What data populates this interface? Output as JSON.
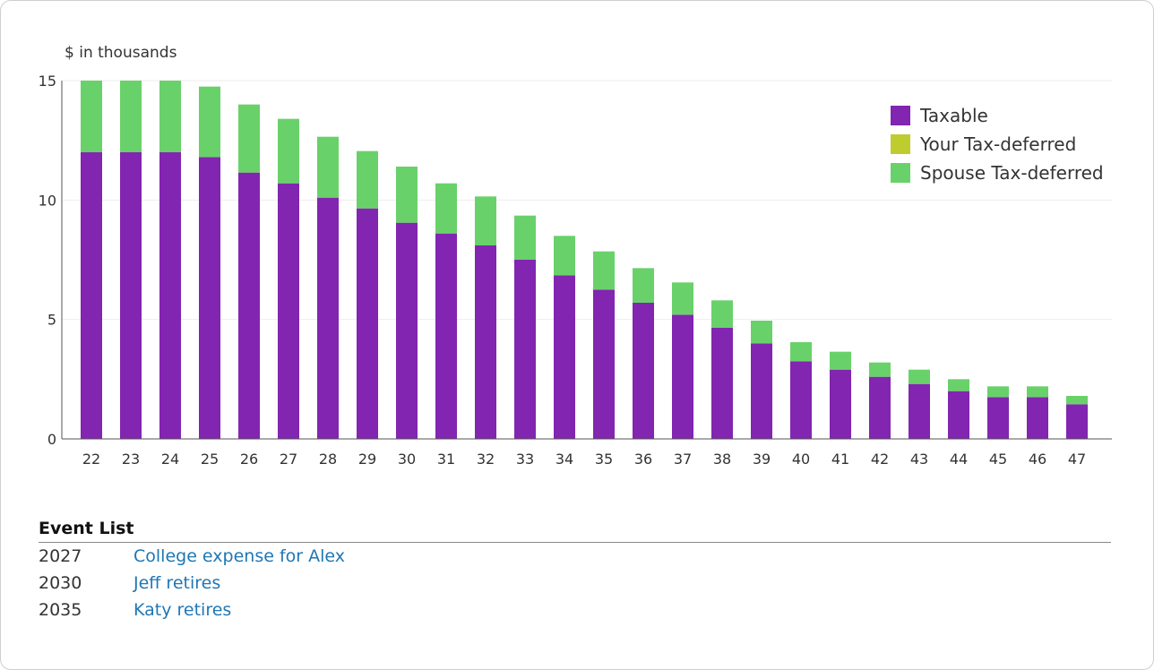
{
  "chart_data": {
    "type": "bar",
    "stacked": true,
    "ylabel": "$ in thousands",
    "ylim": [
      0,
      15
    ],
    "yticks": [
      0,
      5,
      10,
      15
    ],
    "grid": true,
    "legend_position": "top-right",
    "categories": [
      "22",
      "23",
      "24",
      "25",
      "26",
      "27",
      "28",
      "29",
      "30",
      "31",
      "32",
      "33",
      "34",
      "35",
      "36",
      "37",
      "38",
      "39",
      "40",
      "41",
      "42",
      "43",
      "44",
      "45",
      "46",
      "47"
    ],
    "series": [
      {
        "name": "Taxable",
        "color": "#8225b0",
        "values": [
          12.0,
          12.0,
          12.0,
          11.8,
          11.15,
          10.7,
          10.1,
          9.65,
          9.05,
          8.6,
          8.1,
          7.5,
          6.85,
          6.25,
          5.7,
          5.2,
          4.65,
          4.0,
          3.25,
          2.9,
          2.6,
          2.3,
          2.0,
          1.75,
          1.75,
          1.45
        ]
      },
      {
        "name": "Your Tax-deferred",
        "color": "#bfcc30",
        "values": [
          0,
          0,
          0,
          0,
          0,
          0,
          0,
          0,
          0,
          0,
          0,
          0,
          0,
          0,
          0,
          0,
          0,
          0,
          0,
          0,
          0,
          0,
          0,
          0,
          0,
          0
        ]
      },
      {
        "name": "Spouse Tax-deferred",
        "color": "#69d16a",
        "values": [
          3.0,
          3.0,
          3.0,
          2.95,
          2.85,
          2.7,
          2.55,
          2.4,
          2.35,
          2.1,
          2.05,
          1.85,
          1.65,
          1.6,
          1.45,
          1.35,
          1.15,
          0.95,
          0.8,
          0.75,
          0.6,
          0.6,
          0.5,
          0.45,
          0.45,
          0.35
        ]
      }
    ]
  },
  "legend": [
    {
      "label": "Taxable",
      "color": "#8225b0"
    },
    {
      "label": "Your Tax-deferred",
      "color": "#bfcc30"
    },
    {
      "label": "Spouse Tax-deferred",
      "color": "#69d16a"
    }
  ],
  "events": {
    "title": "Event List",
    "items": [
      {
        "year": "2027",
        "label": "College expense for Alex"
      },
      {
        "year": "2030",
        "label": "Jeff retires"
      },
      {
        "year": "2035",
        "label": "Katy retires"
      }
    ]
  }
}
